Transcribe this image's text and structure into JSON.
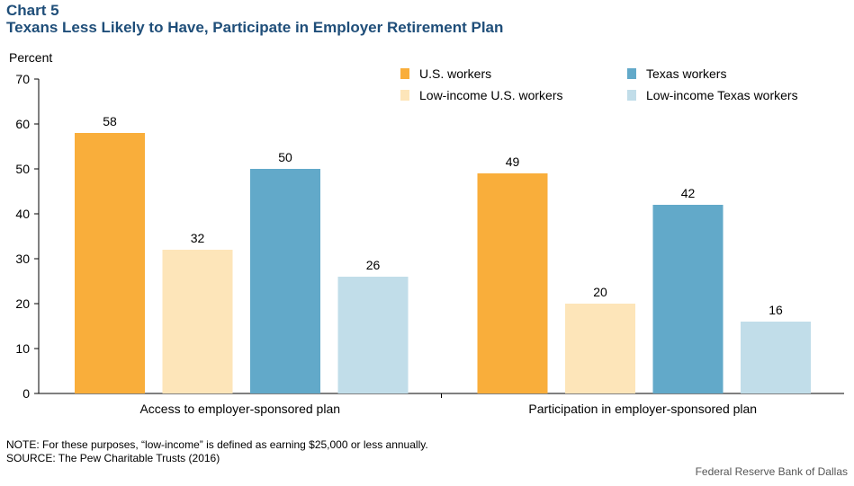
{
  "header": {
    "chart_number": "Chart 5",
    "title": "Texans Less Likely to Have, Participate in Employer Retirement Plan"
  },
  "footer": {
    "note": "NOTE: For these purposes, “low-income” is defined  as earning $25,000  or less annually.",
    "source": "SOURCE: The Pew Charitable Trusts (2016)",
    "credit": "Federal Reserve Bank of Dallas"
  },
  "chart_data": {
    "type": "bar",
    "title": "Texans Less Likely to Have, Participate in Employer Retirement Plan",
    "ylabel": "Percent",
    "xlabel": "",
    "ylim": [
      0,
      70
    ],
    "yticks": [
      0,
      10,
      20,
      30,
      40,
      50,
      60,
      70
    ],
    "grid": false,
    "legend_position": "top-right",
    "categories": [
      "Access to employer-sponsored plan",
      "Participation in employer-sponsored plan"
    ],
    "series": [
      {
        "name": "U.S. workers",
        "color": "#f9ae3b",
        "values": [
          58,
          49
        ]
      },
      {
        "name": "Low-income U.S. workers",
        "color": "#fde5b9",
        "values": [
          32,
          20
        ]
      },
      {
        "name": "Texas workers",
        "color": "#62a9c9",
        "values": [
          50,
          42
        ]
      },
      {
        "name": "Low-income Texas workers",
        "color": "#c1dde9",
        "values": [
          26,
          16
        ]
      }
    ],
    "legend_order": [
      0,
      2,
      1,
      3
    ]
  }
}
